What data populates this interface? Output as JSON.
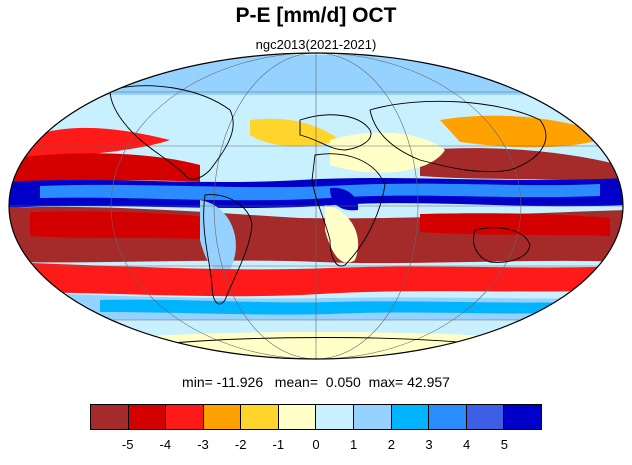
{
  "title": "P-E [mm/d] OCT",
  "subtitle": "ngc2013(2021-2021)",
  "stats": {
    "min_label": "min=",
    "min_value": "-11.926",
    "mean_label": "mean=",
    "mean_value": "0.050",
    "max_label": "max=",
    "max_value": "42.957"
  },
  "colorbar": {
    "colors": [
      "#a52a2a",
      "#d40000",
      "#ff1a1a",
      "#ffa200",
      "#ffd52b",
      "#ffffc8",
      "#c8f0ff",
      "#96d2ff",
      "#00b4ff",
      "#2a8cff",
      "#3c5fe6",
      "#0000c8"
    ],
    "tick_labels": [
      "-5",
      "-4",
      "-3",
      "-2",
      "-1",
      "0",
      "1",
      "2",
      "3",
      "4",
      "5"
    ]
  },
  "map": {
    "projection": "mollweide",
    "land_outline_color": "#000000",
    "grid_color": "#666666"
  }
}
